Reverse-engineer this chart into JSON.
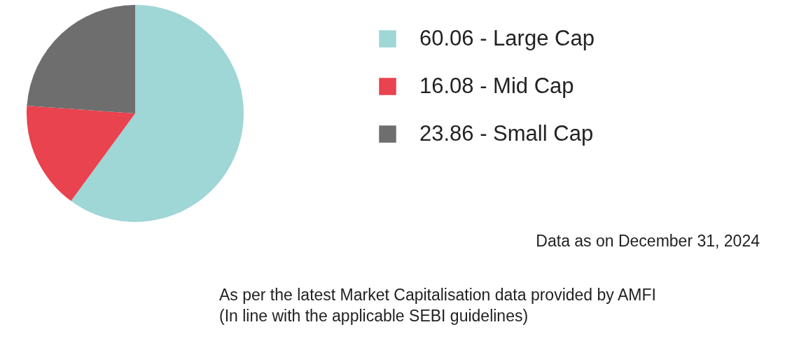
{
  "chart_data": {
    "type": "pie",
    "categories": [
      "60.06 - Large Cap",
      "16.08 - Mid Cap",
      "23.86 - Small Cap"
    ],
    "values": [
      60.06,
      16.08,
      23.86
    ],
    "colors": [
      "#9fd6d6",
      "#e8434f",
      "#6e6e6e"
    ],
    "legend": "right",
    "annotations": [
      "Data as on December 31, 2024",
      "As per the latest Market Capitalisation data provided by AMFI\n(In line with the applicable SEBI guidelines)"
    ]
  }
}
